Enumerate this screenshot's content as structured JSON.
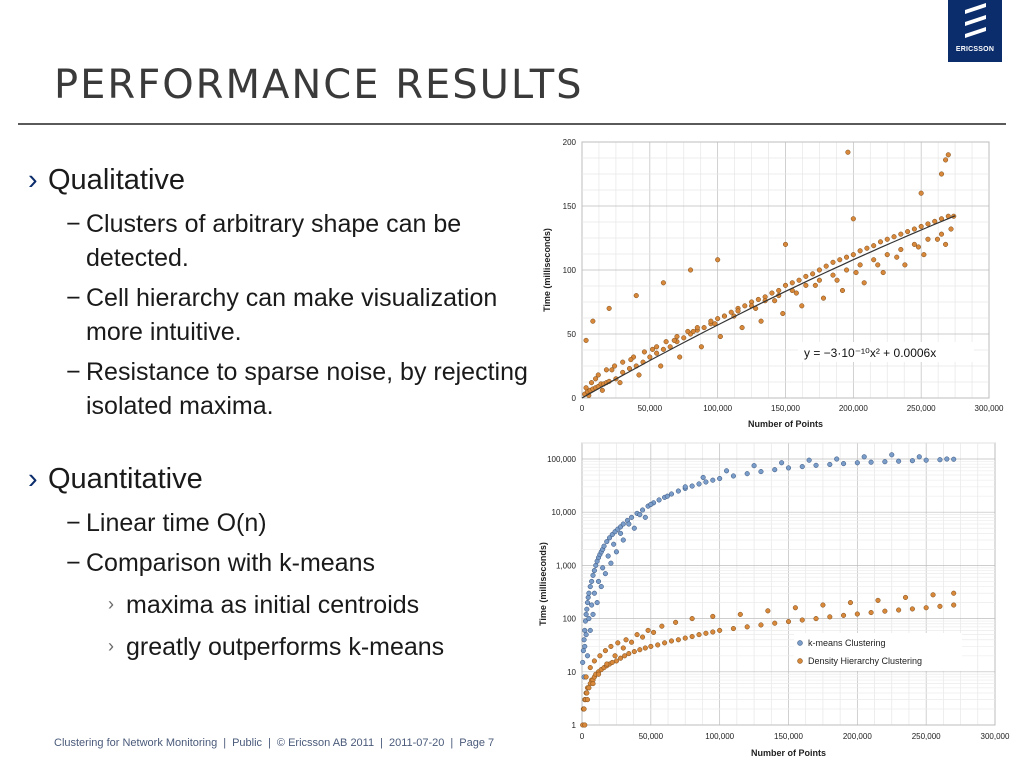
{
  "slide": {
    "title": "PERFORMANCE RESULTS",
    "logo_text": "ERICSSON"
  },
  "bullets": {
    "qualitative": {
      "marker": "›",
      "label": "Qualitative",
      "items": [
        {
          "marker": "−",
          "text": "Clusters of arbitrary shape can be detected."
        },
        {
          "marker": "−",
          "text": "Cell hierarchy can make visualization more intuitive."
        },
        {
          "marker": "−",
          "text": "Resistance to sparse noise, by rejecting isolated maxima."
        }
      ]
    },
    "quantitative": {
      "marker": "›",
      "label": "Quantitative",
      "items": [
        {
          "marker": "−",
          "text": "Linear time O(n)"
        },
        {
          "marker": "−",
          "text": "Comparison with k-means"
        }
      ],
      "subitems": [
        {
          "marker": "›",
          "text": "maxima as initial centroids"
        },
        {
          "marker": "›",
          "text": "greatly outperforms k-means"
        }
      ]
    }
  },
  "footer": {
    "parts": [
      "Clustering for Network Monitoring",
      "Public",
      "© Ericsson AB 2011",
      "2011-07-20",
      "Page 7"
    ]
  },
  "chart_data": [
    {
      "type": "scatter",
      "title": "",
      "xlabel": "Number of Points",
      "ylabel": "Time (milliseconds)",
      "xlim": [
        0,
        300000
      ],
      "ylim": [
        0,
        200
      ],
      "x_ticks": [
        "0",
        "50,000",
        "100,000",
        "150,000",
        "200,000",
        "250,000",
        "300,000"
      ],
      "y_ticks": [
        "0",
        "50",
        "100",
        "150",
        "200"
      ],
      "grid": true,
      "annotation": "y = −3·10⁻¹⁰x² + 0.0006x",
      "trendline": {
        "a": -3e-10,
        "b": 0.0006
      },
      "point_color": "#d8883a",
      "series": [
        {
          "x": [
            2000,
            4000,
            6000,
            8000,
            10000,
            12000,
            14000,
            16000,
            18000,
            20000,
            25000,
            30000,
            35000,
            40000,
            45000,
            50000,
            55000,
            60000,
            65000,
            70000,
            75000,
            80000,
            85000,
            90000,
            95000,
            100000,
            105000,
            110000,
            115000,
            120000,
            125000,
            130000,
            135000,
            140000,
            145000,
            150000,
            155000,
            160000,
            165000,
            170000,
            175000,
            180000,
            185000,
            190000,
            195000,
            200000,
            205000,
            210000,
            215000,
            220000,
            225000,
            230000,
            235000,
            240000,
            245000,
            250000,
            255000,
            260000,
            265000,
            270000,
            274000,
            3000,
            7000,
            12000,
            18000,
            24000,
            30000,
            38000,
            46000,
            55000,
            62000,
            70000,
            78000,
            85000,
            95000,
            105000,
            115000,
            125000,
            135000,
            145000,
            155000,
            165000,
            175000,
            185000,
            195000,
            205000,
            215000,
            225000,
            235000,
            245000,
            255000,
            265000,
            272000,
            5000,
            15000,
            28000,
            42000,
            58000,
            72000,
            88000,
            102000,
            118000,
            132000,
            148000,
            162000,
            178000,
            192000,
            208000,
            222000,
            238000,
            252000,
            268000,
            10000,
            22000,
            36000,
            52000,
            68000,
            82000,
            98000,
            112000,
            128000,
            142000,
            158000,
            172000,
            188000,
            202000,
            218000,
            232000,
            248000,
            262000,
            3000,
            8000,
            20000,
            40000,
            60000,
            80000,
            100000,
            150000,
            200000,
            250000,
            265000,
            270000,
            196000,
            268000
          ],
          "y": [
            3,
            5,
            6,
            7,
            8,
            9,
            11,
            11,
            12,
            13,
            15,
            20,
            23,
            25,
            28,
            32,
            35,
            38,
            40,
            44,
            47,
            50,
            53,
            55,
            58,
            62,
            64,
            67,
            70,
            72,
            75,
            77,
            79,
            82,
            84,
            88,
            90,
            92,
            95,
            97,
            100,
            103,
            106,
            108,
            110,
            112,
            115,
            117,
            119,
            122,
            124,
            126,
            128,
            130,
            132,
            134,
            136,
            138,
            140,
            142,
            142,
            8,
            12,
            18,
            22,
            25,
            28,
            32,
            36,
            40,
            44,
            48,
            52,
            55,
            60,
            64,
            68,
            72,
            76,
            80,
            84,
            88,
            92,
            96,
            100,
            104,
            108,
            112,
            116,
            120,
            124,
            128,
            132,
            2,
            6,
            12,
            18,
            25,
            32,
            40,
            48,
            55,
            60,
            66,
            72,
            78,
            84,
            90,
            98,
            104,
            112,
            120,
            15,
            22,
            30,
            38,
            45,
            52,
            58,
            64,
            70,
            76,
            82,
            88,
            92,
            98,
            104,
            110,
            118,
            124,
            45,
            60,
            70,
            80,
            90,
            100,
            108,
            120,
            140,
            160,
            175,
            190,
            192,
            186
          ]
        }
      ]
    },
    {
      "type": "scatter",
      "title": "",
      "xlabel": "Number of Points",
      "ylabel": "Time (milliseconds)",
      "xlim": [
        0,
        300000
      ],
      "ylim": [
        1,
        200000
      ],
      "y_scale": "log",
      "x_ticks": [
        "0",
        "50,000",
        "100,000",
        "150,000",
        "200,000",
        "250,000",
        "300,000"
      ],
      "y_ticks": [
        "1",
        "10",
        "100",
        "1,000",
        "10,000",
        "100,000"
      ],
      "grid": true,
      "legend": "center-right",
      "series": [
        {
          "name": "k-means Clustering",
          "color": "#7a9cc8",
          "x": [
            500,
            1000,
            1500,
            2000,
            2500,
            3000,
            3500,
            4000,
            4500,
            5000,
            6000,
            7000,
            8000,
            9000,
            10000,
            11000,
            12000,
            13000,
            14000,
            15000,
            16000,
            18000,
            20000,
            22000,
            24000,
            26000,
            28000,
            30000,
            33000,
            36000,
            40000,
            44000,
            48000,
            52000,
            56000,
            60000,
            65000,
            70000,
            75000,
            80000,
            85000,
            90000,
            95000,
            100000,
            110000,
            120000,
            130000,
            140000,
            150000,
            160000,
            170000,
            180000,
            190000,
            200000,
            210000,
            220000,
            230000,
            240000,
            250000,
            260000,
            270000,
            2000,
            3000,
            5000,
            7000,
            9000,
            12000,
            15000,
            19000,
            23000,
            28000,
            34000,
            42000,
            50000,
            62000,
            75000,
            88000,
            105000,
            125000,
            145000,
            165000,
            185000,
            205000,
            225000,
            245000,
            265000,
            1500,
            4000,
            6000,
            8000,
            11000,
            14000,
            17000,
            21000,
            25000,
            30000,
            38000,
            46000
          ],
          "y": [
            15,
            25,
            40,
            60,
            90,
            120,
            150,
            200,
            250,
            300,
            400,
            500,
            650,
            800,
            1000,
            1200,
            1400,
            1600,
            1800,
            2000,
            2300,
            2800,
            3300,
            3800,
            4300,
            4800,
            5300,
            6000,
            7000,
            8000,
            9500,
            11000,
            13000,
            15000,
            17000,
            19000,
            22000,
            25000,
            28000,
            31000,
            34000,
            37000,
            40000,
            43000,
            48000,
            53000,
            58000,
            63000,
            68000,
            72000,
            76000,
            79000,
            82000,
            85000,
            87000,
            89000,
            91000,
            93000,
            95000,
            97000,
            99000,
            30,
            50,
            100,
            180,
            300,
            500,
            900,
            1500,
            2500,
            4000,
            6000,
            9000,
            14000,
            20000,
            30000,
            45000,
            60000,
            75000,
            85000,
            95000,
            100000,
            110000,
            120000,
            110000,
            100000,
            8,
            20,
            60,
            120,
            200,
            400,
            700,
            1100,
            1800,
            3000,
            5000,
            8000
          ]
        },
        {
          "name": "Density Hierarchy Clustering",
          "color": "#d8883a",
          "x": [
            500,
            1000,
            1500,
            2000,
            2500,
            3000,
            3500,
            4000,
            5000,
            6000,
            7000,
            8000,
            9000,
            10000,
            12000,
            14000,
            16000,
            18000,
            20000,
            22000,
            25000,
            28000,
            31000,
            34000,
            38000,
            42000,
            46000,
            50000,
            55000,
            60000,
            65000,
            70000,
            75000,
            80000,
            85000,
            90000,
            95000,
            100000,
            110000,
            120000,
            130000,
            140000,
            150000,
            160000,
            170000,
            180000,
            190000,
            200000,
            210000,
            220000,
            230000,
            240000,
            250000,
            260000,
            270000,
            3000,
            6000,
            9000,
            13000,
            17000,
            21000,
            26000,
            32000,
            40000,
            48000,
            58000,
            68000,
            80000,
            95000,
            115000,
            135000,
            155000,
            175000,
            195000,
            215000,
            235000,
            255000,
            270000,
            2000,
            4000,
            8000,
            12000,
            18000,
            24000,
            30000,
            36000,
            44000,
            52000
          ],
          "y": [
            1,
            2,
            2,
            3,
            3,
            4,
            4,
            5,
            5,
            6,
            7,
            7,
            8,
            9,
            10,
            11,
            12,
            13,
            14,
            15,
            16,
            18,
            20,
            22,
            24,
            26,
            28,
            30,
            32,
            35,
            38,
            40,
            43,
            46,
            50,
            53,
            56,
            60,
            65,
            70,
            76,
            82,
            88,
            94,
            100,
            108,
            115,
            122,
            130,
            138,
            145,
            152,
            160,
            170,
            180,
            8,
            12,
            16,
            20,
            25,
            30,
            35,
            40,
            50,
            60,
            72,
            85,
            100,
            110,
            120,
            140,
            160,
            180,
            200,
            220,
            250,
            280,
            300,
            1,
            3,
            6,
            9,
            14,
            20,
            28,
            36,
            45,
            55
          ]
        }
      ]
    }
  ]
}
